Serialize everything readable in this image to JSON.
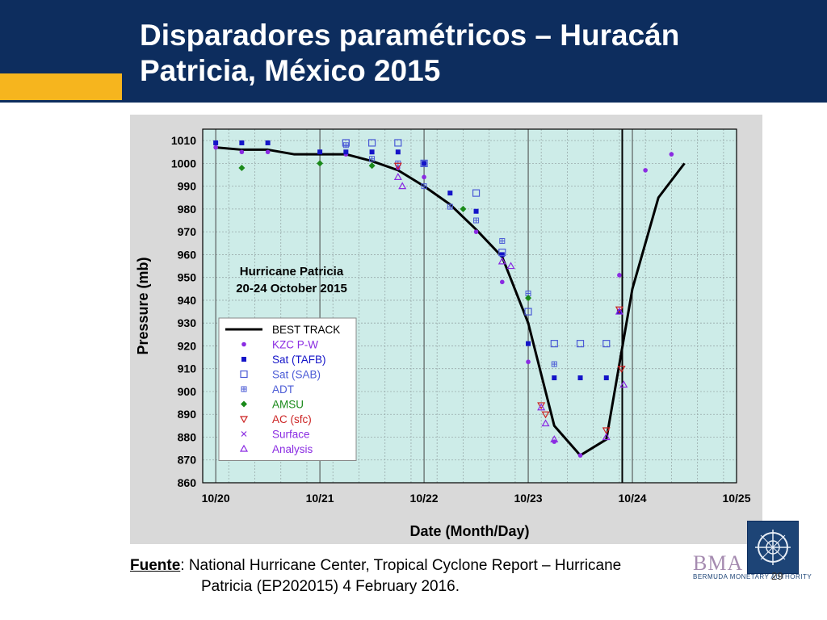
{
  "slide": {
    "title_line1": "Disparadores paramétricos – Huracán",
    "title_line2": "Patricia, México  2015",
    "footer_label": "Fuente",
    "footer_line1": ": National Hurricane Center, Tropical Cyclone Report – Hurricane",
    "footer_line2": "Patricia (EP202015) 4 February 2016.",
    "page_number": "29",
    "logo_text": "BMA",
    "logo_subtext": "BERMUDA MONETARY AUTHORITY",
    "colors": {
      "header": "#0d2d5e",
      "accent": "#f6b51e"
    }
  },
  "chart_data": {
    "type": "scatter",
    "title": "",
    "annotation_line1": "Hurricane Patricia",
    "annotation_line2": "20-24 October 2015",
    "xlabel": "Date (Month/Day)",
    "ylabel": "Pressure (mb)",
    "xlim": [
      "10/19 21:00",
      "10/25"
    ],
    "ylim": [
      860,
      1015
    ],
    "x_ticks": [
      "10/20",
      "10/21",
      "10/22",
      "10/23",
      "10/24",
      "10/25"
    ],
    "y_ticks": [
      860,
      870,
      880,
      890,
      900,
      910,
      920,
      930,
      940,
      950,
      960,
      970,
      980,
      990,
      1000,
      1010
    ],
    "grid": true,
    "legend_position": "bottom-left",
    "colors": {
      "plot_bg": "#cdece8",
      "frame_bg": "#d9d9d9"
    },
    "vertical_line_x": "10/23 21:40",
    "series": [
      {
        "name": "BEST TRACK",
        "marker": "line",
        "color": "#000000",
        "points": [
          [
            "10/20 00:00",
            1007
          ],
          [
            "10/20 06:00",
            1006
          ],
          [
            "10/20 12:00",
            1006
          ],
          [
            "10/20 18:00",
            1004
          ],
          [
            "10/21 00:00",
            1004
          ],
          [
            "10/21 06:00",
            1004
          ],
          [
            "10/21 12:00",
            1001
          ],
          [
            "10/21 18:00",
            997
          ],
          [
            "10/22 00:00",
            990
          ],
          [
            "10/22 06:00",
            982
          ],
          [
            "10/22 12:00",
            971
          ],
          [
            "10/22 18:00",
            959
          ],
          [
            "10/23 00:00",
            930
          ],
          [
            "10/23 06:00",
            885
          ],
          [
            "10/23 12:00",
            872
          ],
          [
            "10/23 18:00",
            879
          ],
          [
            "10/24 00:00",
            945
          ],
          [
            "10/24 06:00",
            985
          ],
          [
            "10/24 12:00",
            1000
          ]
        ]
      },
      {
        "name": "KZC P-W",
        "marker": "circle",
        "color": "#8a2be2",
        "points": [
          [
            "10/20 00:00",
            1007
          ],
          [
            "10/20 06:00",
            1005
          ],
          [
            "10/20 12:00",
            1005
          ],
          [
            "10/21 06:00",
            1004
          ],
          [
            "10/21 18:00",
            998
          ],
          [
            "10/22 00:00",
            994
          ],
          [
            "10/22 12:00",
            970
          ],
          [
            "10/22 18:00",
            948
          ],
          [
            "10/23 00:00",
            913
          ],
          [
            "10/23 06:00",
            878
          ],
          [
            "10/23 12:00",
            872
          ],
          [
            "10/23 21:00",
            951
          ],
          [
            "10/24 03:00",
            997
          ],
          [
            "10/24 09:00",
            1004
          ]
        ]
      },
      {
        "name": "Sat (TAFB)",
        "marker": "filled-square",
        "color": "#1414c8",
        "points": [
          [
            "10/20 00:00",
            1009
          ],
          [
            "10/20 06:00",
            1009
          ],
          [
            "10/20 12:00",
            1009
          ],
          [
            "10/21 00:00",
            1005
          ],
          [
            "10/21 06:00",
            1005
          ],
          [
            "10/21 12:00",
            1005
          ],
          [
            "10/21 18:00",
            1005
          ],
          [
            "10/22 00:00",
            1000
          ],
          [
            "10/22 06:00",
            987
          ],
          [
            "10/22 12:00",
            979
          ],
          [
            "10/22 18:00",
            960
          ],
          [
            "10/23 00:00",
            921
          ],
          [
            "10/23 06:00",
            906
          ],
          [
            "10/23 12:00",
            906
          ],
          [
            "10/23 18:00",
            906
          ],
          [
            "10/23 21:00",
            935
          ]
        ]
      },
      {
        "name": "Sat (SAB)",
        "marker": "open-square",
        "color": "#4b5bd6",
        "points": [
          [
            "10/21 06:00",
            1009
          ],
          [
            "10/21 12:00",
            1009
          ],
          [
            "10/21 18:00",
            1009
          ],
          [
            "10/22 00:00",
            1000
          ],
          [
            "10/22 12:00",
            987
          ],
          [
            "10/22 18:00",
            961
          ],
          [
            "10/23 00:00",
            935
          ],
          [
            "10/23 06:00",
            921
          ],
          [
            "10/23 12:00",
            921
          ],
          [
            "10/23 18:00",
            921
          ]
        ]
      },
      {
        "name": "ADT",
        "marker": "boxed-plus",
        "color": "#4b5bd6",
        "points": [
          [
            "10/21 06:00",
            1008
          ],
          [
            "10/21 12:00",
            1002
          ],
          [
            "10/21 18:00",
            1000
          ],
          [
            "10/22 00:00",
            990
          ],
          [
            "10/22 06:00",
            981
          ],
          [
            "10/22 12:00",
            975
          ],
          [
            "10/22 18:00",
            966
          ],
          [
            "10/23 00:00",
            943
          ],
          [
            "10/23 06:00",
            912
          ]
        ]
      },
      {
        "name": "AMSU",
        "marker": "diamond",
        "color": "#1a8a1a",
        "points": [
          [
            "10/20 06:00",
            998
          ],
          [
            "10/21 00:00",
            1000
          ],
          [
            "10/21 12:00",
            999
          ],
          [
            "10/22 09:00",
            980
          ],
          [
            "10/23 00:00",
            941
          ]
        ]
      },
      {
        "name": "AC (sfc)",
        "marker": "down-triangle",
        "color": "#cc2222",
        "points": [
          [
            "10/21 18:00",
            999
          ],
          [
            "10/23 03:00",
            894
          ],
          [
            "10/23 04:00",
            890
          ],
          [
            "10/23 18:00",
            883
          ],
          [
            "10/23 21:00",
            936
          ],
          [
            "10/23 21:30",
            910
          ]
        ]
      },
      {
        "name": "Surface",
        "marker": "x",
        "color": "#8a2be2",
        "points": []
      },
      {
        "name": "Analysis",
        "marker": "up-triangle",
        "color": "#8a2be2",
        "points": [
          [
            "10/21 18:00",
            994
          ],
          [
            "10/21 19:00",
            990
          ],
          [
            "10/22 18:00",
            957
          ],
          [
            "10/22 20:00",
            955
          ],
          [
            "10/23 03:00",
            893
          ],
          [
            "10/23 04:00",
            886
          ],
          [
            "10/23 06:00",
            879
          ],
          [
            "10/23 18:00",
            880
          ],
          [
            "10/23 21:00",
            935
          ],
          [
            "10/23 22:00",
            903
          ]
        ]
      }
    ]
  }
}
